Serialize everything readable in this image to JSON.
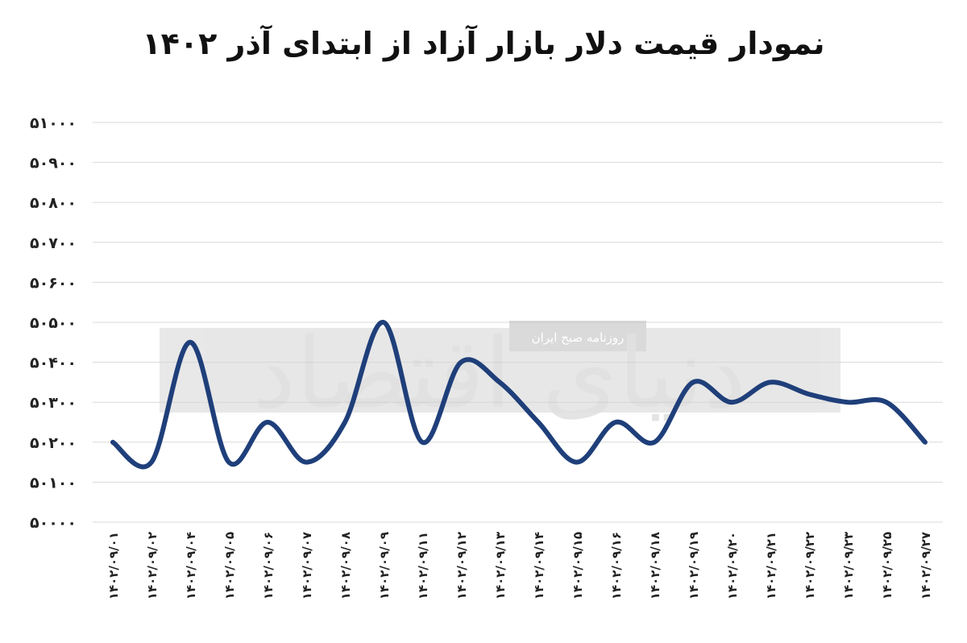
{
  "chart_data": {
    "type": "line",
    "title": "نمودار قیمت دلار بازار آزاد از ابتدای آذر ۱۴۰۲",
    "xlabel": "",
    "ylabel": "",
    "ylim": [
      50000,
      51000
    ],
    "yticks": [
      50000,
      50100,
      50200,
      50300,
      50400,
      50500,
      50600,
      50700,
      50800,
      50900,
      51000
    ],
    "ytick_labels": [
      "۵۰۰۰۰",
      "۵۰۱۰۰",
      "۵۰۲۰۰",
      "۵۰۳۰۰",
      "۵۰۴۰۰",
      "۵۰۵۰۰",
      "۵۰۶۰۰",
      "۵۰۷۰۰",
      "۵۰۸۰۰",
      "۵۰۹۰۰",
      "۵۱۰۰۰"
    ],
    "grid": true,
    "legend": "none",
    "line_color": "#1f3f7a",
    "categories": [
      "۱۴۰۲/۰۹/۰۱",
      "۱۴۰۲/۰۹/۰۲",
      "۱۴۰۲/۰۹/۰۴",
      "۱۴۰۲/۰۹/۰۵",
      "۱۴۰۲/۰۹/۰۶",
      "۱۴۰۲/۰۹/۰۷",
      "۱۴۰۲/۰۹/۰۸",
      "۱۴۰۲/۰۹/۰۹",
      "۱۴۰۲/۰۹/۱۱",
      "۱۴۰۲/۰۹/۱۲",
      "۱۴۰۲/۰۹/۱۳",
      "۱۴۰۲/۰۹/۱۴",
      "۱۴۰۲/۰۹/۱۵",
      "۱۴۰۲/۰۹/۱۶",
      "۱۴۰۲/۰۹/۱۸",
      "۱۴۰۲/۰۹/۱۹",
      "۱۴۰۲/۰۹/۲۰",
      "۱۴۰۲/۰۹/۲۱",
      "۱۴۰۲/۰۹/۲۲",
      "۱۴۰۲/۰۹/۲۳",
      "۱۴۰۲/۰۹/۲۵",
      "۱۴۰۲/۰۹/۲۷"
    ],
    "series": [
      {
        "values": [
          50200,
          50150,
          50450,
          50150,
          50250,
          50150,
          50250,
          50500,
          50200,
          50400,
          50350,
          50250,
          50150,
          50250,
          50200,
          50350,
          50300,
          50350,
          50320,
          50300,
          50300,
          50200
        ]
      }
    ]
  },
  "watermark": {
    "logo_text": "دنیای اقتصاد",
    "subtitle": "روزنامه صبح ایران"
  }
}
